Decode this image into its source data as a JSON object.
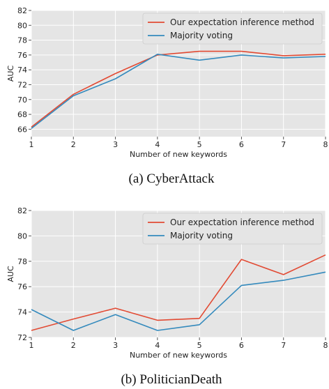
{
  "chart_data": [
    {
      "type": "line",
      "caption": "(a) CyberAttack",
      "xlabel": "Number of new keywords",
      "ylabel": "AUC",
      "x": [
        1,
        2,
        3,
        4,
        5,
        6,
        7,
        8
      ],
      "xlim": [
        1,
        8
      ],
      "ylim": [
        65,
        82
      ],
      "yticks": [
        66,
        68,
        70,
        72,
        74,
        76,
        78,
        80,
        82
      ],
      "grid": true,
      "legend": "upper-right",
      "series": [
        {
          "name": "Our expectation inference method",
          "color": "#E24A33",
          "values": [
            66.3,
            70.7,
            73.5,
            76.0,
            76.5,
            76.5,
            75.9,
            76.1
          ]
        },
        {
          "name": "Majority voting",
          "color": "#348ABD",
          "values": [
            66.1,
            70.5,
            72.8,
            76.1,
            75.3,
            76.0,
            75.6,
            75.8
          ]
        }
      ]
    },
    {
      "type": "line",
      "caption": "(b) PoliticianDeath",
      "xlabel": "Number of new keywords",
      "ylabel": "AUC",
      "x": [
        1,
        2,
        3,
        4,
        5,
        6,
        7,
        8
      ],
      "xlim": [
        1,
        8
      ],
      "ylim": [
        72,
        82
      ],
      "yticks": [
        72,
        74,
        76,
        78,
        80,
        82
      ],
      "grid": true,
      "legend": "upper-right",
      "series": [
        {
          "name": "Our expectation inference method",
          "color": "#E24A33",
          "values": [
            72.55,
            73.45,
            74.3,
            73.35,
            73.5,
            78.15,
            76.95,
            78.5
          ]
        },
        {
          "name": "Majority voting",
          "color": "#348ABD",
          "values": [
            74.2,
            72.55,
            73.8,
            72.55,
            73.0,
            76.1,
            76.5,
            77.15
          ]
        }
      ]
    }
  ]
}
